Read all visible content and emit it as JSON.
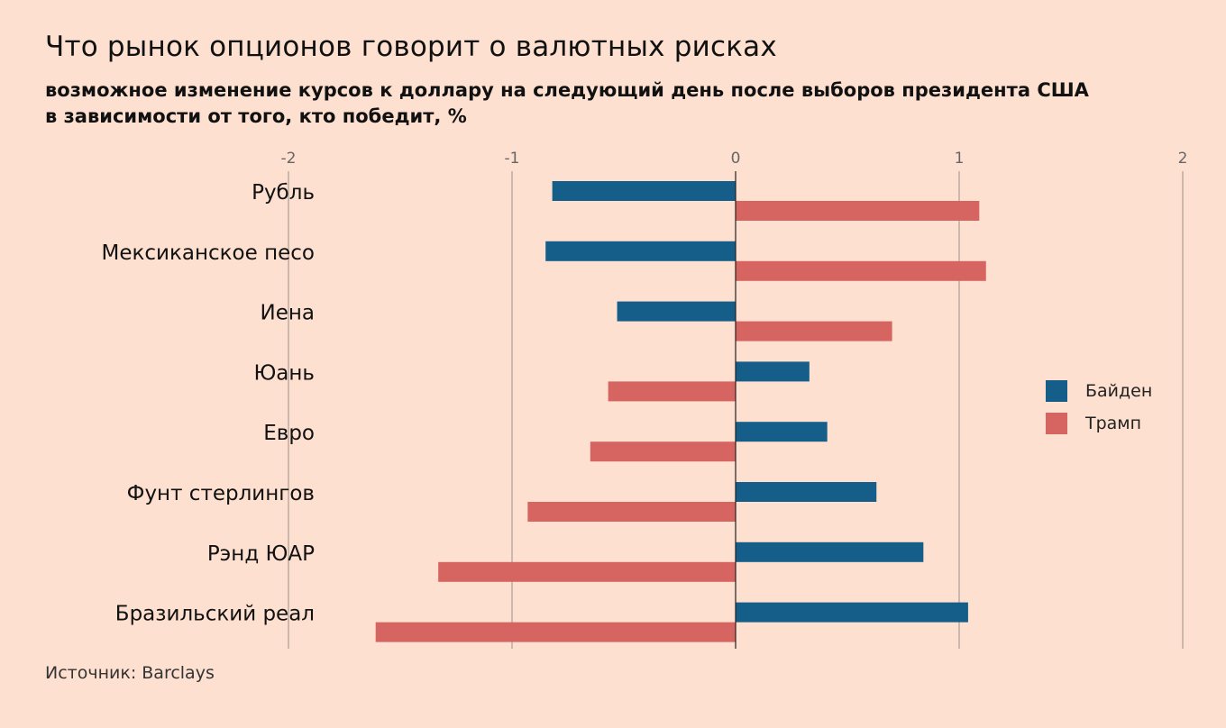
{
  "title": "Что рынок опционов говорит о валютных рисках",
  "subtitle_line1": "возможное изменение курсов к доллару на следующий день после выборов президента США",
  "subtitle_line2": "в зависимости от того, кто победит, %",
  "source": "Источник: Barclays",
  "colors": {
    "background": "#fde0cf",
    "biden": "#155e8a",
    "trump": "#d66561",
    "grid": "#9a8f8a"
  },
  "chart_data": {
    "type": "bar",
    "orientation": "horizontal",
    "categories": [
      "Рубль",
      "Мексиканское песо",
      "Иена",
      "Юань",
      "Евро",
      "Фунт стерлингов",
      "Рэнд ЮАР",
      "Бразильский реал"
    ],
    "series": [
      {
        "name": "Байден",
        "values": [
          -0.82,
          -0.85,
          -0.53,
          0.33,
          0.41,
          0.63,
          0.84,
          1.04
        ]
      },
      {
        "name": "Трамп",
        "values": [
          1.09,
          1.12,
          0.7,
          -0.57,
          -0.65,
          -0.93,
          -1.33,
          -1.61
        ]
      }
    ],
    "xlim": [
      -2,
      2
    ],
    "xticks": [
      "-2",
      "-1",
      "0",
      "1",
      "2"
    ],
    "grid": true,
    "legend_position": "right"
  }
}
